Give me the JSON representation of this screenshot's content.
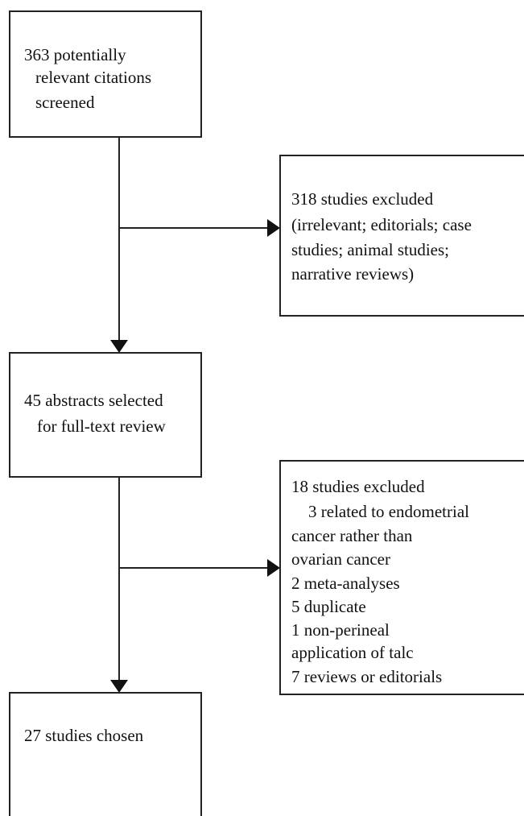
{
  "nodes": [
    {
      "lines": [
        "363 potentially",
        "relevant citations",
        "screened"
      ]
    },
    {
      "lines": [
        "318 studies excluded",
        "(irrelevant; editorials; case",
        "studies; animal studies;",
        "narrative reviews)"
      ]
    },
    {
      "lines": [
        "45 abstracts selected",
        "for full-text review"
      ]
    },
    {
      "lines": [
        "18 studies excluded",
        "3 related to endometrial",
        "cancer rather than",
        "ovarian cancer",
        "2 meta-analyses",
        "5 duplicate",
        "1 non-perineal",
        "application of talc",
        "7 reviews or editorials"
      ]
    },
    {
      "lines": [
        "27 studies chosen"
      ]
    }
  ]
}
